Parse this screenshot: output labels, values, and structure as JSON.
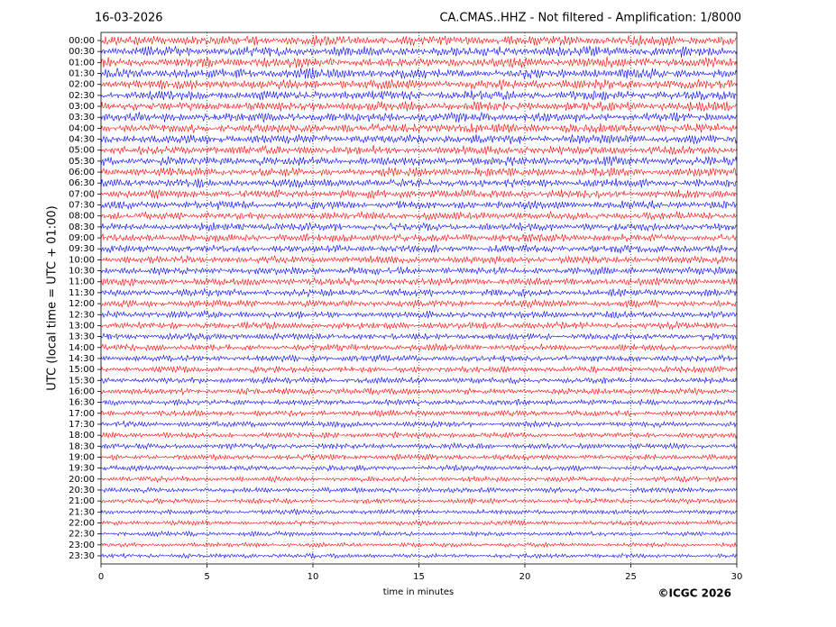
{
  "chart_data": {
    "type": "helicorder",
    "title_left": "16-03-2026",
    "title_right": "CA.CMAS..HHZ - Not filtered - Amplification: 1/8000",
    "ylabel": "UTC (local time = UTC + 01:00)",
    "xlabel": "time in minutes",
    "copyright": "©ICGC 2026",
    "xlim": [
      0,
      30
    ],
    "xticks": [
      0,
      5,
      10,
      15,
      20,
      25,
      30
    ],
    "grid": true,
    "ylim": [
      -0.37,
      23.87
    ],
    "y_inverted": true,
    "trace_colors": [
      "#ff0000",
      "#0000ff"
    ],
    "yticks": [
      {
        "value": 0,
        "label": "00:00"
      },
      {
        "value": 0.5,
        "label": "00:30"
      },
      {
        "value": 1,
        "label": "01:00"
      },
      {
        "value": 1.5,
        "label": "01:30"
      },
      {
        "value": 2,
        "label": "02:00"
      },
      {
        "value": 2.5,
        "label": "02:30"
      },
      {
        "value": 3,
        "label": "03:00"
      },
      {
        "value": 3.5,
        "label": "03:30"
      },
      {
        "value": 4,
        "label": "04:00"
      },
      {
        "value": 4.5,
        "label": "04:30"
      },
      {
        "value": 5,
        "label": "05:00"
      },
      {
        "value": 5.5,
        "label": "05:30"
      },
      {
        "value": 6,
        "label": "06:00"
      },
      {
        "value": 6.5,
        "label": "06:30"
      },
      {
        "value": 7,
        "label": "07:00"
      },
      {
        "value": 7.5,
        "label": "07:30"
      },
      {
        "value": 8,
        "label": "08:00"
      },
      {
        "value": 8.5,
        "label": "08:30"
      },
      {
        "value": 9,
        "label": "09:00"
      },
      {
        "value": 9.5,
        "label": "09:30"
      },
      {
        "value": 10,
        "label": "10:00"
      },
      {
        "value": 10.5,
        "label": "10:30"
      },
      {
        "value": 11,
        "label": "11:00"
      },
      {
        "value": 11.5,
        "label": "11:30"
      },
      {
        "value": 12,
        "label": "12:00"
      },
      {
        "value": 12.5,
        "label": "12:30"
      },
      {
        "value": 13,
        "label": "13:00"
      },
      {
        "value": 13.5,
        "label": "13:30"
      },
      {
        "value": 14,
        "label": "14:00"
      },
      {
        "value": 14.5,
        "label": "14:30"
      },
      {
        "value": 15,
        "label": "15:00"
      },
      {
        "value": 15.5,
        "label": "15:30"
      },
      {
        "value": 16,
        "label": "16:00"
      },
      {
        "value": 16.5,
        "label": "16:30"
      },
      {
        "value": 17,
        "label": "17:00"
      },
      {
        "value": 17.5,
        "label": "17:30"
      },
      {
        "value": 18,
        "label": "18:00"
      },
      {
        "value": 18.5,
        "label": "18:30"
      },
      {
        "value": 19,
        "label": "19:00"
      },
      {
        "value": 19.5,
        "label": "19:30"
      },
      {
        "value": 20,
        "label": "20:00"
      },
      {
        "value": 20.5,
        "label": "20:30"
      },
      {
        "value": 21,
        "label": "21:00"
      },
      {
        "value": 21.5,
        "label": "21:30"
      },
      {
        "value": 22,
        "label": "22:00"
      },
      {
        "value": 22.5,
        "label": "22:30"
      },
      {
        "value": 23,
        "label": "23:00"
      },
      {
        "value": 23.5,
        "label": "23:30"
      }
    ]
  }
}
